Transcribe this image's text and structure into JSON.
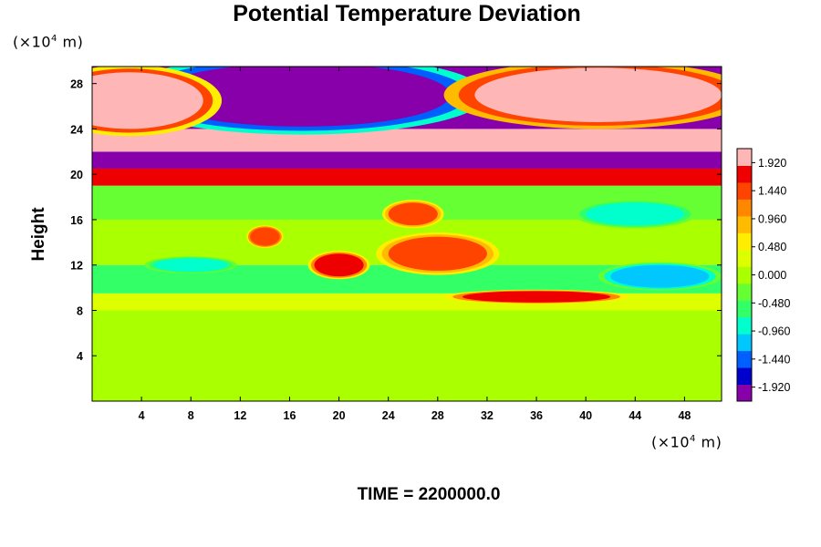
{
  "chart_data": {
    "type": "heatmap",
    "title": "Potential Temperature Deviation",
    "ylabel": "Height",
    "y_unit": {
      "prefix": "(×10",
      "exp": "4",
      "suffix": " m)"
    },
    "x_unit": {
      "prefix": "(×10",
      "exp": "4",
      "suffix": " m)"
    },
    "footer": "TIME = 2200000.0",
    "xlim": [
      0,
      51
    ],
    "ylim": [
      0,
      29.5
    ],
    "x_ticks": [
      "4",
      "8",
      "12",
      "16",
      "20",
      "24",
      "28",
      "32",
      "36",
      "40",
      "44",
      "48"
    ],
    "y_ticks": [
      "4",
      "8",
      "12",
      "16",
      "20",
      "24",
      "28"
    ],
    "colorbar": {
      "range": [
        -2.16,
        2.16
      ],
      "labels": [
        "1.920",
        "1.440",
        "0.960",
        "0.480",
        "0.000",
        "-0.480",
        "-0.960",
        "-1.440",
        "-1.920"
      ],
      "colors": [
        "#8800aa",
        "#0000cc",
        "#0060ff",
        "#00c8ff",
        "#00ffcc",
        "#33ff66",
        "#66ff33",
        "#aaff00",
        "#ddff00",
        "#ffee00",
        "#ffbb00",
        "#ff8800",
        "#ff4400",
        "#ee0000",
        "#ffb6b6"
      ]
    },
    "field_bands": [
      {
        "y": [
          0,
          8
        ],
        "value": -0.1
      },
      {
        "y": [
          8,
          9.5
        ],
        "value": 0.4
      },
      {
        "y": [
          9.5,
          12
        ],
        "value": -0.6
      },
      {
        "y": [
          12,
          16
        ],
        "value": 0.1
      },
      {
        "y": [
          16,
          19
        ],
        "value": -0.3
      },
      {
        "y": [
          19,
          20.5
        ],
        "value": 1.6
      },
      {
        "y": [
          20.5,
          22
        ],
        "value": -1.9
      },
      {
        "y": [
          22,
          24
        ],
        "value": 2.0
      },
      {
        "y": [
          24,
          29.5
        ],
        "value": -2.0
      }
    ],
    "field_blobs": [
      {
        "x": 17,
        "y": 27,
        "rx": 12,
        "ry": 2.8,
        "value": -2.1
      },
      {
        "x": 41,
        "y": 27,
        "rx": 10,
        "ry": 2.4,
        "value": 2.1
      },
      {
        "x": 3,
        "y": 26.5,
        "rx": 6,
        "ry": 2.5,
        "value": 2.0
      },
      {
        "x": 28,
        "y": 13,
        "rx": 4,
        "ry": 1.5,
        "value": 1.4
      },
      {
        "x": 20,
        "y": 12,
        "rx": 2,
        "ry": 1,
        "value": 1.6
      },
      {
        "x": 26,
        "y": 16.5,
        "rx": 2,
        "ry": 1,
        "value": 1.3
      },
      {
        "x": 14,
        "y": 14.5,
        "rx": 1.2,
        "ry": 0.8,
        "value": 1.5
      },
      {
        "x": 36,
        "y": 9.2,
        "rx": 6,
        "ry": 0.5,
        "value": 1.6
      },
      {
        "x": 46,
        "y": 11,
        "rx": 4,
        "ry": 1,
        "value": -1.2
      },
      {
        "x": 8,
        "y": 12,
        "rx": 3,
        "ry": 0.6,
        "value": -1.0
      },
      {
        "x": 44,
        "y": 16.5,
        "rx": 4,
        "ry": 1,
        "value": -0.9
      }
    ]
  }
}
